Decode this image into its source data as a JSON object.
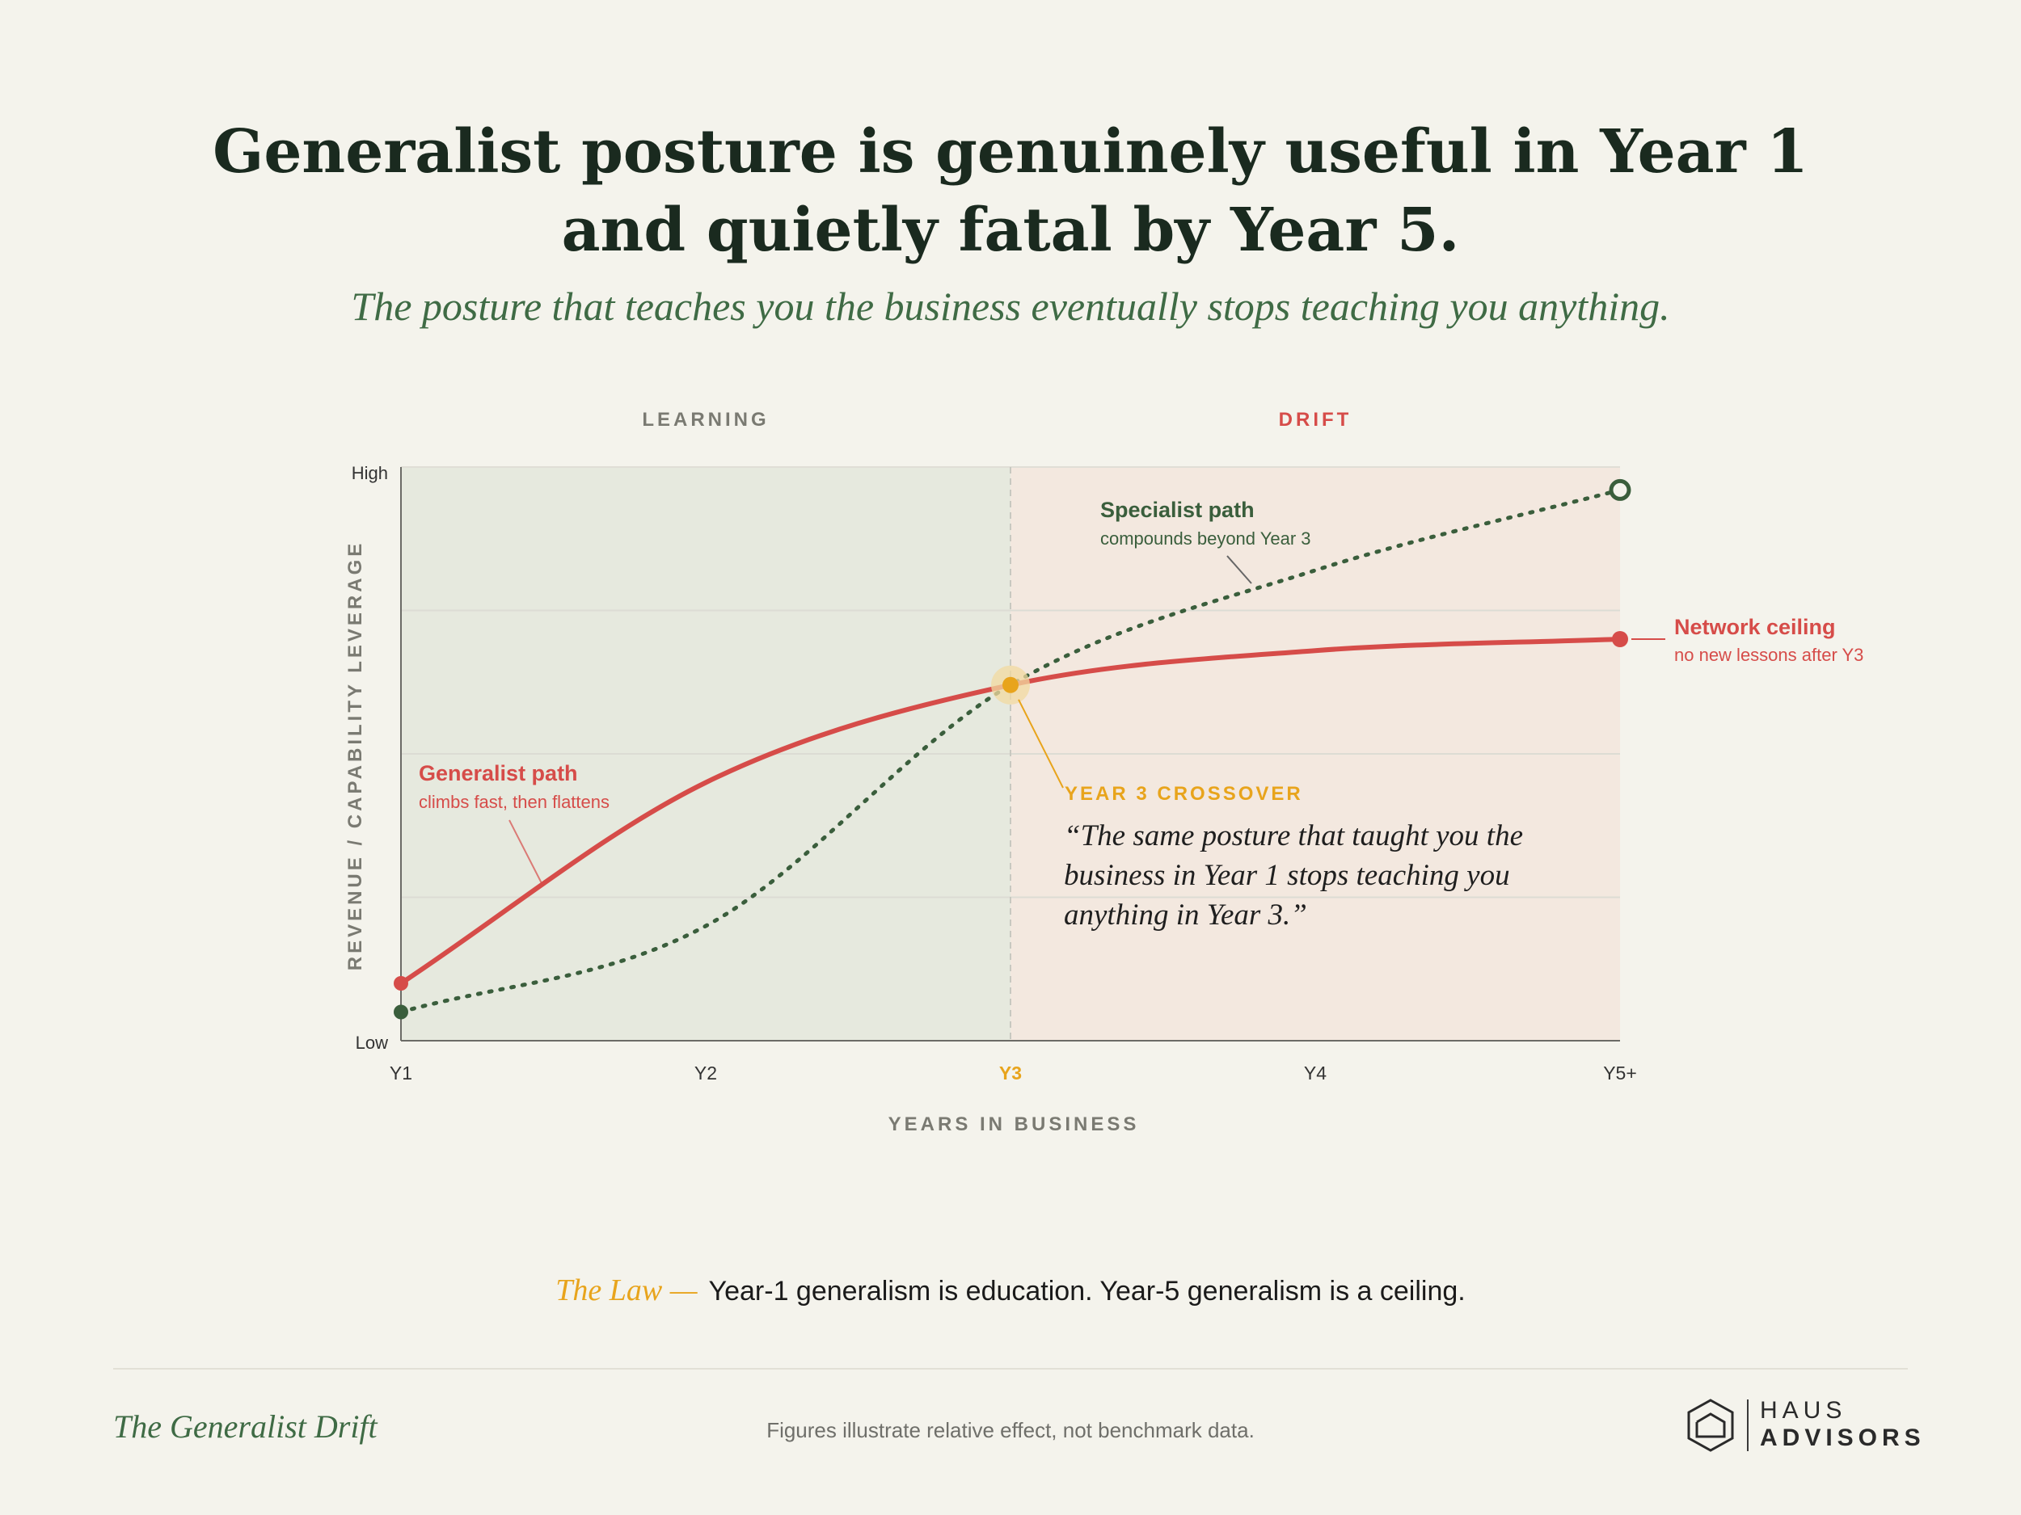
{
  "title": {
    "line1": "Generalist posture is genuinely useful in Year 1",
    "line2": "and quietly fatal by Year 5."
  },
  "subtitle": "The posture that teaches you the business eventually stops teaching you anything.",
  "chart_data": {
    "type": "line",
    "x": [
      "Y1",
      "Y2",
      "Y3",
      "Y4",
      "Y5+"
    ],
    "x_highlight": "Y3",
    "xlabel": "YEARS IN BUSINESS",
    "ylabel": "REVENUE / CAPABILITY LEVERAGE",
    "y_ticks": [
      "Low",
      "High"
    ],
    "ylim": [
      0,
      100
    ],
    "grid": true,
    "zones": [
      {
        "label": "LEARNING",
        "from": "Y1",
        "to": "Y3",
        "color": "#e6e9de",
        "label_color": "#7a7a72"
      },
      {
        "label": "DRIFT",
        "from": "Y3",
        "to": "Y5+",
        "color": "#f3e8df",
        "label_color": "#d64c49"
      }
    ],
    "series": [
      {
        "name": "Generalist path",
        "style": "solid",
        "color": "#d64c49",
        "values": [
          10,
          45,
          62,
          68,
          70
        ],
        "label": "Generalist path",
        "sublabel": "climbs fast, then flattens"
      },
      {
        "name": "Specialist path",
        "style": "dotted",
        "color": "#3a5e3c",
        "values": [
          5,
          20,
          62,
          82,
          96
        ],
        "label": "Specialist path",
        "sublabel": "compounds beyond Year 3"
      }
    ],
    "annotations": {
      "ceiling": {
        "label": "Network ceiling",
        "sublabel": "no new lessons after Y3",
        "color": "#d64c49"
      },
      "crossover": {
        "label": "YEAR 3 CROSSOVER",
        "color": "#e8a41c",
        "quote_lines": [
          "“The same posture that taught you the",
          "business in Year 1 stops teaching you",
          "anything in Year 3.”"
        ]
      }
    }
  },
  "law": {
    "lead": "The Law —",
    "text": "Year-1 generalism is education. Year-5 generalism is a ceiling."
  },
  "footer": {
    "title": "The Generalist Drift",
    "note": "Figures illustrate relative effect, not benchmark data.",
    "brand_name": "HAUS",
    "brand_sub": "ADVISORS"
  }
}
